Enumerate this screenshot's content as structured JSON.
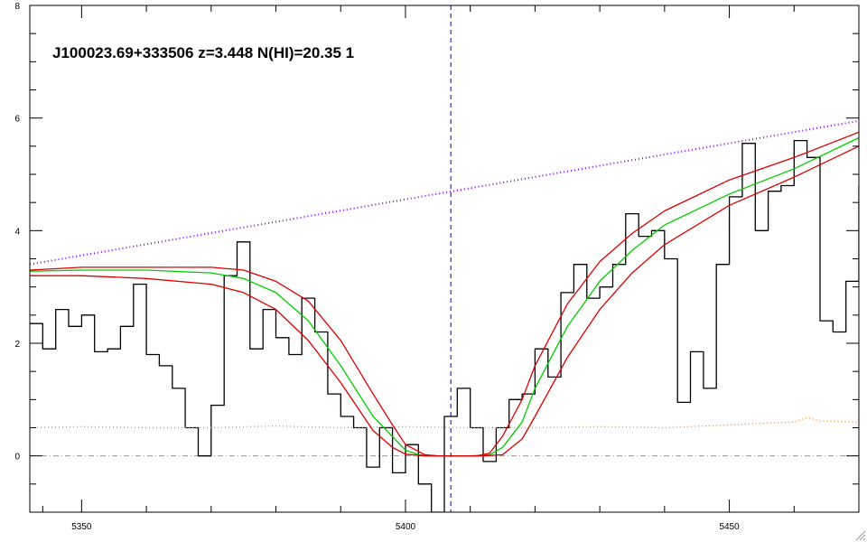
{
  "chart_data": {
    "type": "line",
    "title": "J100023.69+333506 z=3.448 N(HI)=20.35 1",
    "xlabel": "",
    "ylabel": "",
    "xlim": [
      5342,
      5470
    ],
    "ylim": [
      -1,
      8
    ],
    "x_ticks": [
      5350,
      5400,
      5450
    ],
    "x_tick_labels": [
      "5350",
      "5400",
      "5450"
    ],
    "y_ticks": [
      0,
      2,
      4,
      6,
      8
    ],
    "y_tick_labels": [
      "0",
      "2",
      "4",
      "6",
      "8"
    ],
    "grid": false,
    "legend": "none",
    "zero_line": 0,
    "line_center": 5407,
    "colors": {
      "spectrum": "#000000",
      "fit": "#00cc00",
      "fit_bounds": "#dd0000",
      "continuum": "#8800ff",
      "error": "#ff8800",
      "zero": "#999999",
      "center": "#0000cc"
    },
    "series": [
      {
        "role": "spectrum",
        "step": true,
        "x": [
          5342,
          5344,
          5346,
          5348,
          5350,
          5352,
          5354,
          5356,
          5358,
          5360,
          5362,
          5364,
          5366,
          5368,
          5370,
          5372,
          5374,
          5376,
          5378,
          5380,
          5382,
          5384,
          5386,
          5388,
          5390,
          5392,
          5394,
          5396,
          5398,
          5400,
          5402,
          5404,
          5406,
          5408,
          5410,
          5412,
          5414,
          5416,
          5418,
          5420,
          5422,
          5424,
          5426,
          5428,
          5430,
          5432,
          5434,
          5436,
          5438,
          5440,
          5442,
          5444,
          5446,
          5448,
          5450,
          5452,
          5454,
          5456,
          5458,
          5460,
          5462,
          5464,
          5466,
          5468,
          5470
        ],
        "y": [
          2.35,
          1.9,
          2.6,
          2.3,
          2.5,
          1.85,
          1.9,
          2.3,
          3.05,
          1.8,
          1.6,
          1.2,
          0.5,
          0.0,
          0.9,
          3.2,
          3.8,
          1.9,
          2.6,
          2.1,
          1.8,
          2.8,
          2.2,
          1.1,
          0.7,
          0.5,
          -0.2,
          0.5,
          -0.3,
          0.2,
          -0.5,
          -1.0,
          0.7,
          1.2,
          0.5,
          -0.1,
          0.5,
          1.0,
          1.1,
          1.9,
          1.4,
          2.9,
          3.4,
          2.8,
          3.0,
          3.4,
          4.3,
          3.9,
          4.0,
          3.5,
          0.95,
          1.85,
          1.2,
          3.4,
          4.6,
          5.55,
          4.0,
          4.7,
          4.8,
          5.6,
          5.3,
          2.4,
          2.2,
          3.1,
          4.8
        ]
      },
      {
        "role": "continuum",
        "x": [
          5342,
          5470
        ],
        "y": [
          3.4,
          5.95
        ]
      },
      {
        "role": "error",
        "x": [
          5342,
          5350,
          5360,
          5370,
          5380,
          5390,
          5400,
          5410,
          5420,
          5430,
          5440,
          5450,
          5455,
          5460,
          5462,
          5464,
          5470
        ],
        "y": [
          0.5,
          0.52,
          0.5,
          0.5,
          0.53,
          0.5,
          0.52,
          0.5,
          0.5,
          0.52,
          0.5,
          0.55,
          0.58,
          0.6,
          0.68,
          0.62,
          0.6
        ]
      },
      {
        "role": "fit",
        "x": [
          5342,
          5350,
          5360,
          5370,
          5375,
          5380,
          5385,
          5390,
          5395,
          5400,
          5402,
          5405,
          5408,
          5410,
          5413,
          5415,
          5418,
          5420,
          5425,
          5430,
          5435,
          5440,
          5450,
          5460,
          5470
        ],
        "y": [
          3.28,
          3.3,
          3.3,
          3.25,
          3.15,
          2.9,
          2.4,
          1.6,
          0.7,
          0.1,
          0.02,
          0.0,
          0.0,
          0.0,
          0.02,
          0.15,
          0.6,
          1.2,
          2.3,
          3.1,
          3.65,
          4.1,
          4.65,
          5.1,
          5.65
        ]
      },
      {
        "role": "fit_bounds",
        "x": [
          5342,
          5350,
          5360,
          5370,
          5375,
          5380,
          5385,
          5390,
          5395,
          5398,
          5400,
          5403,
          5405,
          5408,
          5411,
          5413,
          5415,
          5418,
          5420,
          5425,
          5430,
          5435,
          5440,
          5450,
          5460,
          5470
        ],
        "y": [
          3.3,
          3.35,
          3.35,
          3.35,
          3.3,
          3.1,
          2.75,
          2.05,
          1.1,
          0.55,
          0.2,
          0.02,
          0.0,
          0.0,
          0.0,
          0.05,
          0.35,
          1.0,
          1.6,
          2.7,
          3.45,
          3.95,
          4.35,
          4.9,
          5.3,
          5.75
        ]
      },
      {
        "role": "fit_bounds",
        "x": [
          5342,
          5350,
          5360,
          5370,
          5375,
          5380,
          5385,
          5390,
          5395,
          5398,
          5400,
          5403,
          5405,
          5408,
          5410,
          5412,
          5415,
          5418,
          5420,
          5425,
          5430,
          5435,
          5440,
          5450,
          5460,
          5470
        ],
        "y": [
          3.2,
          3.2,
          3.15,
          3.05,
          2.9,
          2.6,
          2.05,
          1.3,
          0.45,
          0.15,
          0.03,
          0.0,
          0.0,
          0.0,
          0.0,
          0.0,
          0.02,
          0.3,
          0.7,
          1.75,
          2.6,
          3.25,
          3.75,
          4.45,
          4.95,
          5.5
        ]
      }
    ]
  }
}
